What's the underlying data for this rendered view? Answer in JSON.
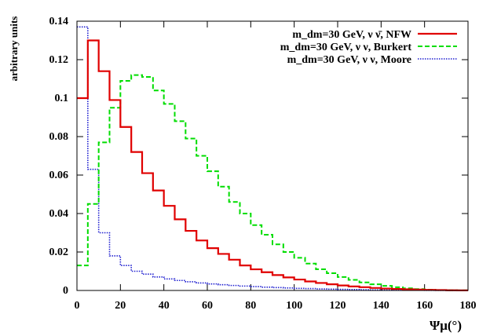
{
  "chart_data": {
    "type": "line",
    "ylabel": "arbitrary units",
    "xlabel": "Ψμ(°)",
    "xlim": [
      0,
      180
    ],
    "ylim": [
      0,
      0.14
    ],
    "x_ticks": [
      "0",
      "20",
      "40",
      "60",
      "80",
      "100",
      "120",
      "140",
      "160",
      "180"
    ],
    "y_ticks": [
      "0",
      "0.02",
      "0.04",
      "0.06",
      "0.08",
      "0.1",
      "0.12",
      "0.14"
    ],
    "legend_position": "top-right",
    "bin_edges": [
      0,
      5,
      10,
      15,
      20,
      25,
      30,
      35,
      40,
      45,
      50,
      55,
      60,
      65,
      70,
      75,
      80,
      85,
      90,
      95,
      100,
      105,
      110,
      115,
      120,
      125,
      130,
      135,
      140,
      145,
      150,
      155,
      160,
      165,
      170,
      175,
      180
    ],
    "series": [
      {
        "name": "m_dm=30 GeV, ν ν̄, NFW",
        "color": "#e00000",
        "style": "solid",
        "values": [
          0.1,
          0.13,
          0.114,
          0.099,
          0.085,
          0.072,
          0.061,
          0.052,
          0.044,
          0.037,
          0.031,
          0.026,
          0.022,
          0.019,
          0.016,
          0.013,
          0.011,
          0.0095,
          0.008,
          0.0068,
          0.0057,
          0.0047,
          0.0039,
          0.0032,
          0.0026,
          0.0021,
          0.0017,
          0.0013,
          0.001,
          0.0008,
          0.0006,
          0.00045,
          0.0003,
          0.0002,
          0.0001,
          5e-05
        ]
      },
      {
        "name": "m_dm=30 GeV, ν ν, Burkert",
        "color": "#00dd00",
        "style": "dashed",
        "values": [
          0.013,
          0.045,
          0.077,
          0.095,
          0.109,
          0.112,
          0.111,
          0.104,
          0.097,
          0.088,
          0.079,
          0.07,
          0.062,
          0.054,
          0.046,
          0.04,
          0.034,
          0.029,
          0.024,
          0.02,
          0.017,
          0.014,
          0.011,
          0.009,
          0.007,
          0.0055,
          0.0042,
          0.0032,
          0.0024,
          0.0017,
          0.0011,
          0.0007,
          0.0004,
          0.0002,
          0.0001,
          5e-05
        ]
      },
      {
        "name": "m_dm=30 GeV, ν ν, Moore",
        "color": "#2020d0",
        "style": "dotted",
        "values": [
          0.137,
          0.063,
          0.03,
          0.018,
          0.013,
          0.01,
          0.0085,
          0.007,
          0.006,
          0.0052,
          0.0045,
          0.0039,
          0.0034,
          0.003,
          0.0026,
          0.0023,
          0.002,
          0.0017,
          0.0015,
          0.0013,
          0.0011,
          0.001,
          0.0008,
          0.0007,
          0.0006,
          0.0005,
          0.0004,
          0.0003,
          0.00025,
          0.0002,
          0.00015,
          0.0001,
          8e-05,
          5e-05,
          3e-05,
          1e-05
        ]
      }
    ]
  }
}
